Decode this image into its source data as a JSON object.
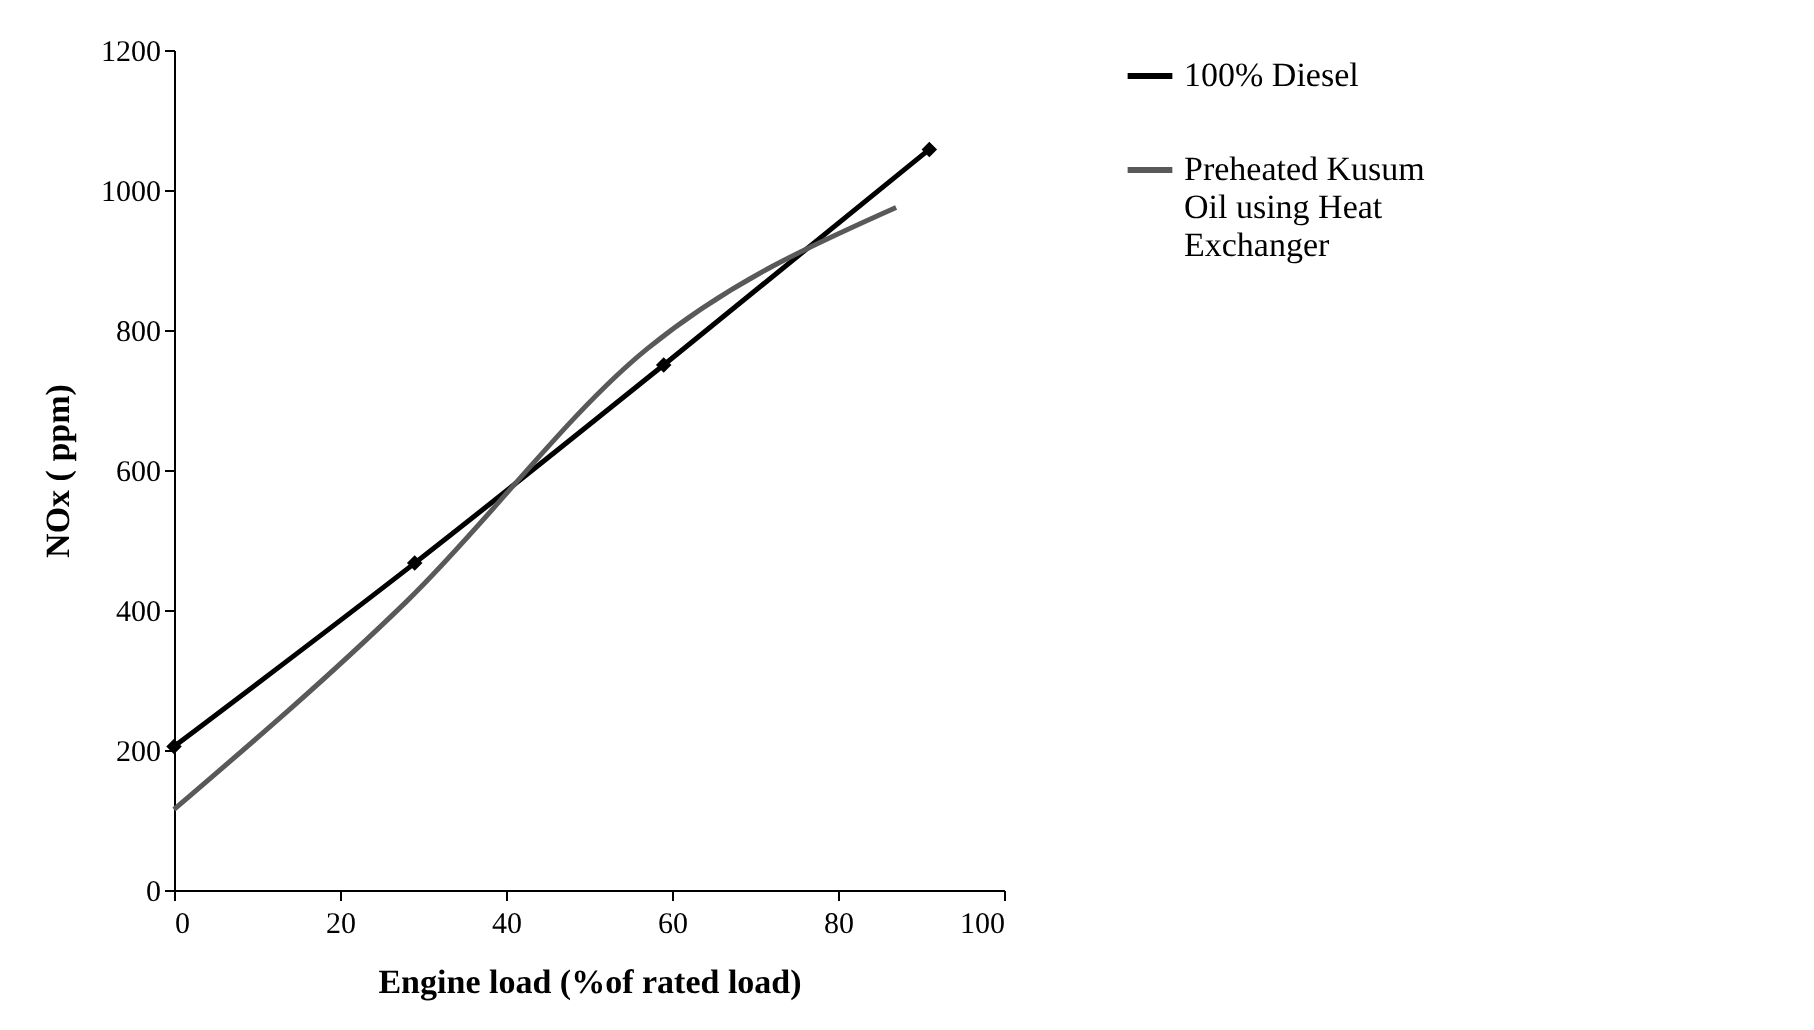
{
  "chart_data": {
    "type": "line",
    "xlabel": "Engine load (%of rated load)",
    "ylabel": "NOx ( ppm)",
    "xlim": [
      0,
      100
    ],
    "xticks": [
      0,
      20,
      40,
      60,
      80,
      100
    ],
    "ylim": [
      0,
      1200
    ],
    "yticks": [
      0,
      200,
      400,
      600,
      800,
      1000,
      1200
    ],
    "grid": false,
    "legend": "right",
    "line_style": "solid",
    "series": [
      {
        "name": "100% Diesel",
        "color": "#000000",
        "marker": "diamond",
        "x": [
          0,
          29,
          59,
          91
        ],
        "values": [
          205,
          467,
          750,
          1058
        ]
      },
      {
        "name": "Preheated Kusum Oil using Heat Exchanger",
        "color": "#595959",
        "marker": "none",
        "x": [
          0,
          28,
          57,
          87
        ],
        "values": [
          115,
          412,
          773,
          975
        ]
      }
    ]
  }
}
